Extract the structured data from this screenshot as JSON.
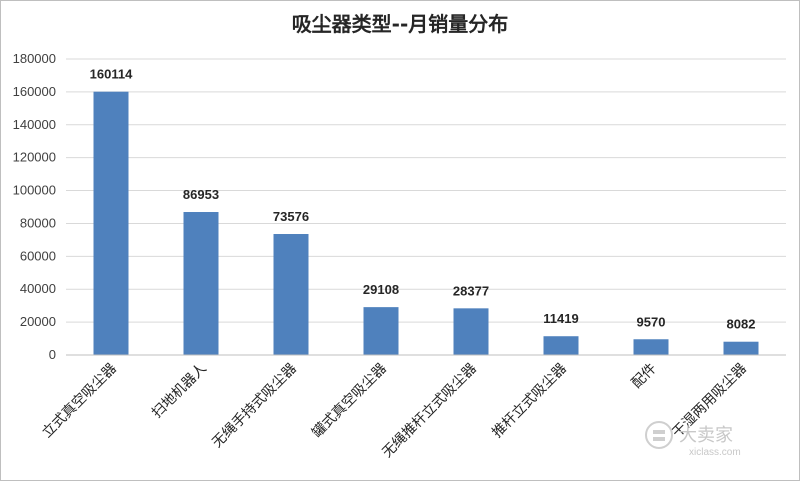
{
  "chart_data": {
    "type": "bar",
    "title": "吸尘器类型--月销量分布",
    "categories": [
      "立式真空吸尘器",
      "扫地机器人",
      "无绳手持式吸尘器",
      "罐式真空吸尘器",
      "无绳推杆立式吸尘器",
      "推杆立式吸尘器",
      "配件",
      "干湿两用吸尘器"
    ],
    "values": [
      160114,
      86953,
      73576,
      29108,
      28377,
      11419,
      9570,
      8082
    ],
    "ylim": [
      0,
      180000
    ],
    "yticks": [
      0,
      20000,
      40000,
      60000,
      80000,
      100000,
      120000,
      140000,
      160000,
      180000
    ],
    "xlabel": "",
    "ylabel": "",
    "bar_color": "#4f81bd",
    "grid": true,
    "legend": "none"
  },
  "watermark": {
    "text": "大卖家",
    "sub": "xiclass.com"
  }
}
